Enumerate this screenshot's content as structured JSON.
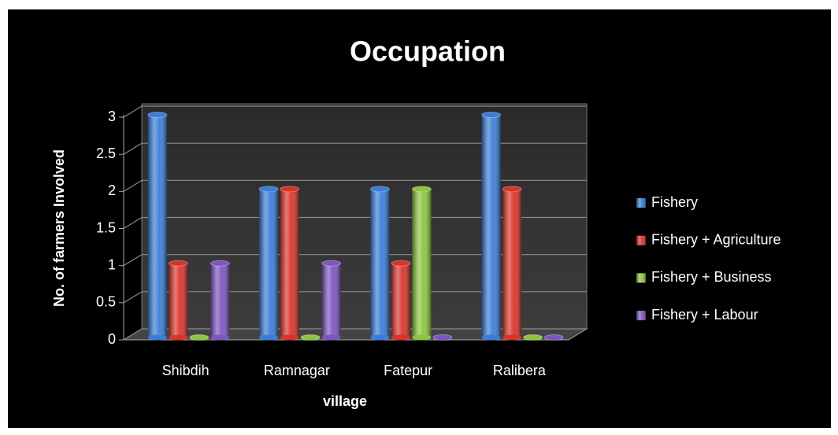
{
  "chart_data": {
    "type": "bar3d",
    "title": "Occupation",
    "x_label": "village",
    "y_label": "No. of farmers Involved",
    "categories": [
      "Shibdih",
      "Ramnagar",
      "Fatepur",
      "Ralibera"
    ],
    "series": [
      {
        "name": "Fishery",
        "color": "#3b7dd8",
        "values": [
          3,
          2,
          2,
          3
        ]
      },
      {
        "name": "Fishery + Agriculture",
        "color": "#d9342b",
        "values": [
          1,
          2,
          1,
          2
        ]
      },
      {
        "name": "Fishery + Business",
        "color": "#8cc63e",
        "values": [
          0,
          0,
          2,
          0
        ]
      },
      {
        "name": "Fishery + Labour",
        "color": "#7d55c0",
        "values": [
          1,
          1,
          0,
          0
        ]
      }
    ],
    "ylim": [
      0,
      3
    ],
    "yticks": [
      0,
      0.5,
      1,
      1.5,
      2,
      2.5,
      3
    ],
    "grid": true,
    "legend": "right"
  }
}
